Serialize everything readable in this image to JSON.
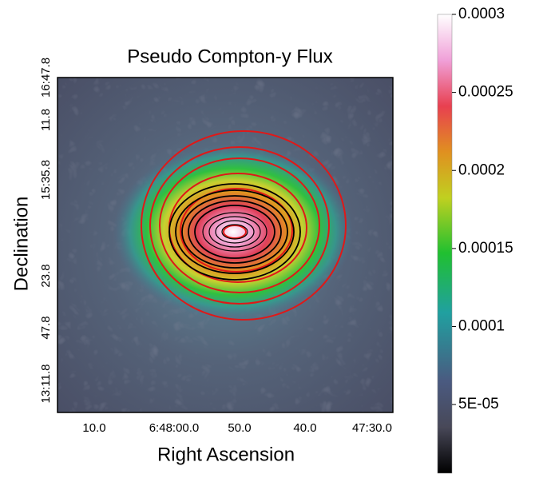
{
  "chart_data": {
    "type": "image",
    "title": "Pseudo Compton-y Flux",
    "x_label": "Right Ascension",
    "y_label": "Declination",
    "xtick_labels": [
      "10.0",
      "6:48:00.0",
      "50.0",
      "40.0",
      "47:30.0"
    ],
    "ytick_labels": [
      "16:47.8",
      "11.8",
      "15:35.8",
      "23.8",
      "47.8",
      "13:11.8"
    ],
    "colorbar": {
      "lim": [
        6e-06,
        0.0003
      ],
      "ticks": [
        {
          "value": 5e-05,
          "label": "5E-05"
        },
        0.0001,
        0.00015,
        0.0002,
        0.00025,
        0.0003
      ]
    }
  }
}
